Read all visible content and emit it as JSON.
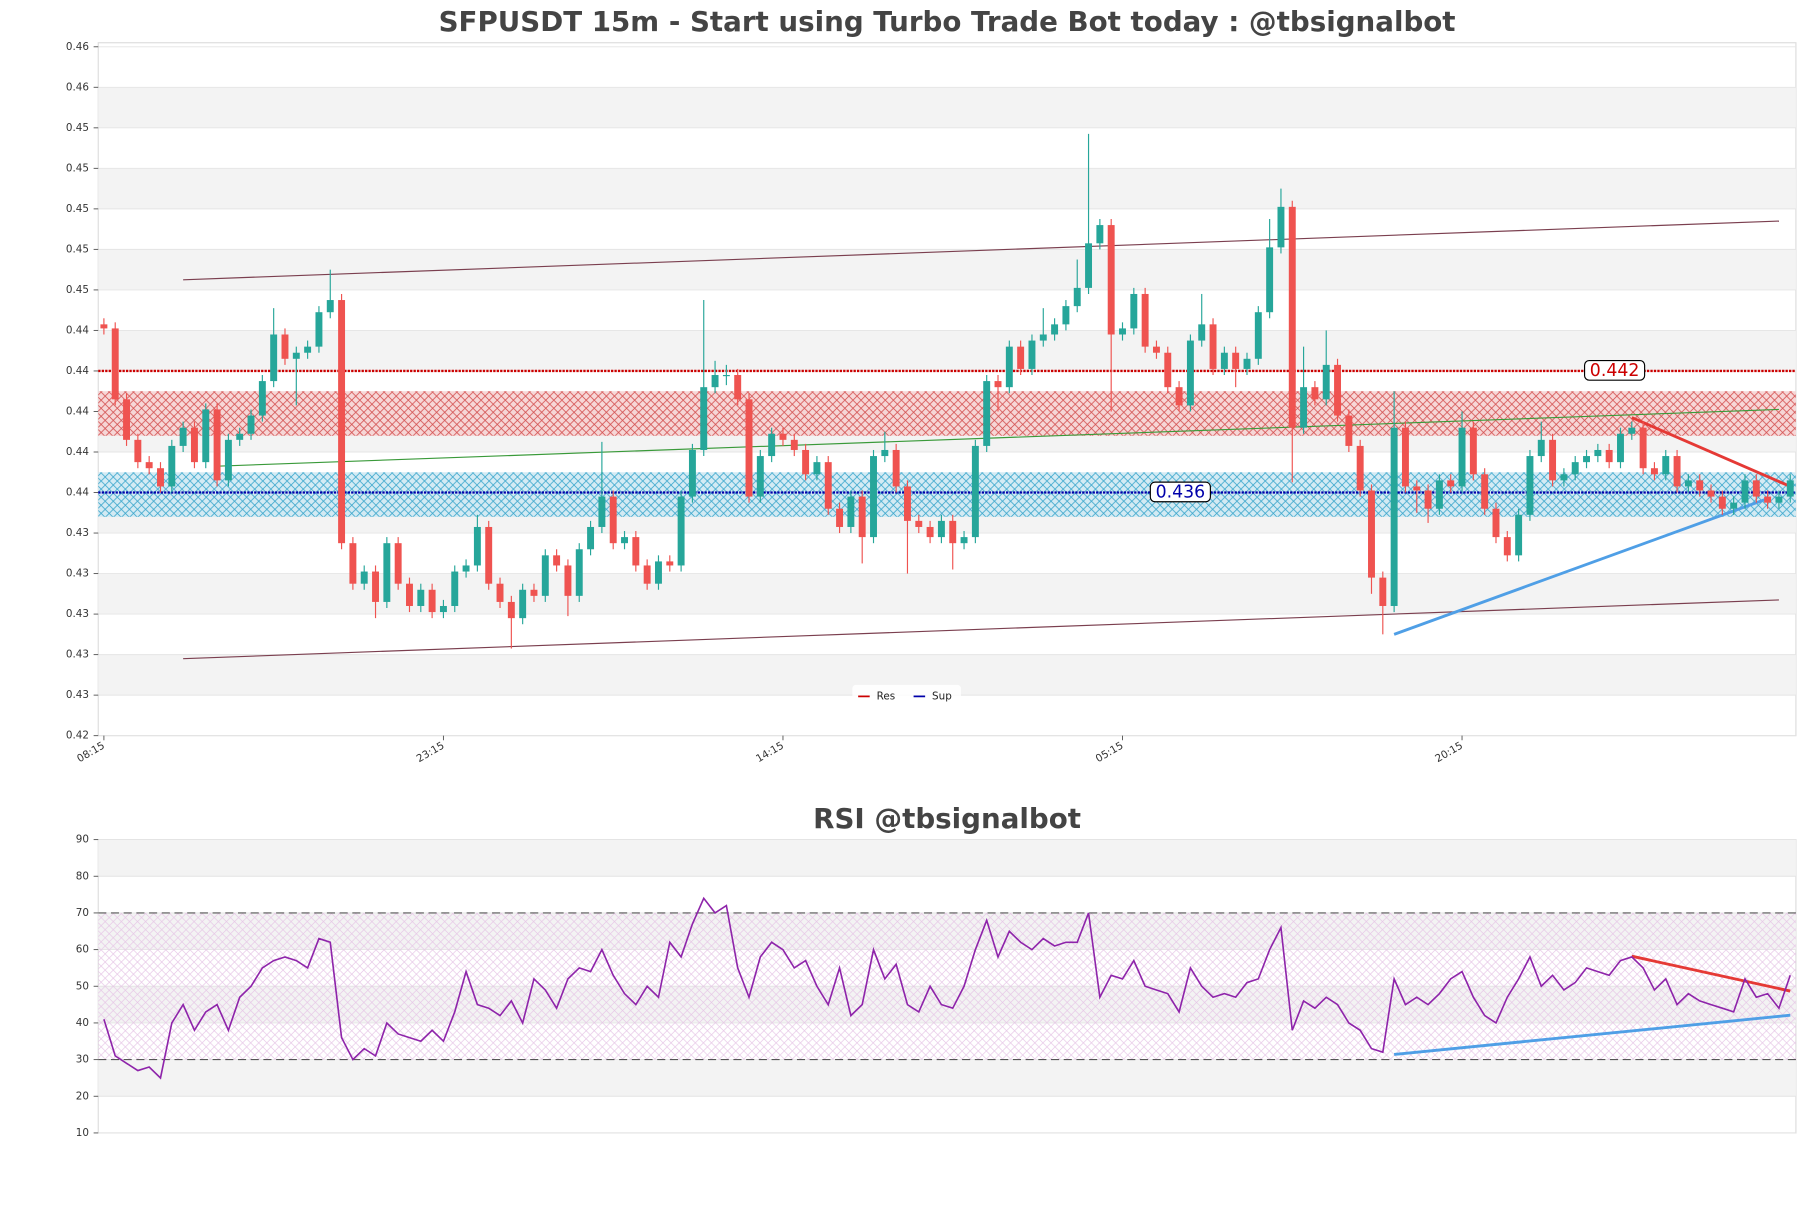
{
  "chart_data": [
    {
      "type": "candlestick",
      "title": "SFPUSDT 15m - Start using Turbo Trade Bot today : @tbsignalbot",
      "categories": [
        "08:15",
        null,
        null,
        null,
        null,
        null,
        null,
        null,
        null,
        null,
        null,
        null,
        null,
        null,
        null,
        null,
        null,
        null,
        null,
        null,
        null,
        null,
        null,
        null,
        null,
        null,
        null,
        null,
        null,
        null,
        "23:15",
        null,
        null,
        null,
        null,
        null,
        null,
        null,
        null,
        null,
        null,
        null,
        null,
        null,
        null,
        null,
        null,
        null,
        null,
        null,
        null,
        null,
        null,
        null,
        null,
        null,
        null,
        null,
        null,
        null,
        "14:15",
        null,
        null,
        null,
        null,
        null,
        null,
        null,
        null,
        null,
        null,
        null,
        null,
        null,
        null,
        null,
        null,
        null,
        null,
        null,
        null,
        null,
        null,
        null,
        null,
        null,
        null,
        null,
        null,
        null,
        "05:15",
        null,
        null,
        null,
        null,
        null,
        null,
        null,
        null,
        null,
        null,
        null,
        null,
        null,
        null,
        null,
        null,
        null,
        null,
        null,
        null,
        null,
        null,
        null,
        null,
        null,
        null,
        null,
        null,
        null,
        "20:15",
        null,
        null,
        null,
        null,
        null,
        null,
        null,
        null,
        null,
        null,
        null,
        null,
        null,
        null,
        null,
        null,
        null,
        null,
        null,
        null,
        null,
        null,
        null,
        null,
        null,
        null,
        null,
        null,
        null
      ],
      "open": [
        0.4443,
        0.4441,
        0.4406,
        0.4386,
        0.4375,
        0.4372,
        0.4363,
        0.4383,
        0.4392,
        0.4375,
        0.4401,
        0.4366,
        0.4386,
        0.4389,
        0.4398,
        0.4415,
        0.4438,
        0.4426,
        0.4429,
        0.4432,
        0.4449,
        0.4455,
        0.4335,
        0.4315,
        0.4321,
        0.4306,
        0.4335,
        0.4315,
        0.4304,
        0.4312,
        0.4301,
        0.4304,
        0.4321,
        0.4324,
        0.4343,
        0.4315,
        0.4306,
        0.4298,
        0.4312,
        0.4309,
        0.4329,
        0.4324,
        0.4309,
        0.4332,
        0.4343,
        0.4358,
        0.4335,
        0.4338,
        0.4324,
        0.4315,
        0.4326,
        0.4324,
        0.4358,
        0.4381,
        0.4412,
        0.4418,
        0.4418,
        0.4406,
        0.4358,
        0.4378,
        0.4389,
        0.4386,
        0.4381,
        0.4369,
        0.4375,
        0.4352,
        0.4343,
        0.4358,
        0.4338,
        0.4378,
        0.4381,
        0.4363,
        0.4346,
        0.4343,
        0.4338,
        0.4346,
        0.4335,
        0.4338,
        0.4383,
        0.4415,
        0.4412,
        0.4432,
        0.4421,
        0.4435,
        0.4438,
        0.4443,
        0.4452,
        0.4461,
        0.4483,
        0.4492,
        0.4438,
        0.4441,
        0.4458,
        0.4432,
        0.4429,
        0.4412,
        0.4403,
        0.4435,
        0.4443,
        0.4421,
        0.4429,
        0.4421,
        0.4426,
        0.4449,
        0.4481,
        0.4501,
        0.4392,
        0.4412,
        0.4406,
        0.4423,
        0.4398,
        0.4383,
        0.4361,
        0.4318,
        0.4304,
        0.4392,
        0.4363,
        0.4361,
        0.4352,
        0.4366,
        0.4363,
        0.4392,
        0.4369,
        0.4352,
        0.4338,
        0.4329,
        0.4349,
        0.4378,
        0.4386,
        0.4366,
        0.4369,
        0.4375,
        0.4378,
        0.4381,
        0.4375,
        0.4389,
        0.4392,
        0.4372,
        0.4369,
        0.4378,
        0.4363,
        0.4366,
        0.4361,
        0.4358,
        0.4352,
        0.4355,
        0.4366,
        0.4358,
        0.4355,
        0.4358
      ],
      "high": [
        0.4446,
        0.4444,
        0.4409,
        0.4389,
        0.4378,
        0.4375,
        0.4386,
        0.4395,
        0.4395,
        0.4404,
        0.4404,
        0.4389,
        0.4392,
        0.4401,
        0.4418,
        0.4451,
        0.4441,
        0.4432,
        0.4435,
        0.4452,
        0.447,
        0.4458,
        0.4338,
        0.4324,
        0.4324,
        0.4338,
        0.4338,
        0.4318,
        0.4315,
        0.4315,
        0.4307,
        0.4324,
        0.4327,
        0.4349,
        0.4346,
        0.4318,
        0.4309,
        0.4315,
        0.4315,
        0.4332,
        0.4332,
        0.4327,
        0.4335,
        0.4346,
        0.4385,
        0.4361,
        0.4341,
        0.4341,
        0.4327,
        0.4329,
        0.4329,
        0.4361,
        0.4384,
        0.4455,
        0.4425,
        0.4423,
        0.4421,
        0.4409,
        0.4381,
        0.4392,
        0.4392,
        0.4389,
        0.4384,
        0.4378,
        0.4378,
        0.4355,
        0.4361,
        0.4361,
        0.4381,
        0.439,
        0.4384,
        0.4366,
        0.4349,
        0.4346,
        0.4349,
        0.4349,
        0.4341,
        0.4386,
        0.4418,
        0.4418,
        0.4435,
        0.4435,
        0.4438,
        0.4451,
        0.4446,
        0.4455,
        0.4475,
        0.4537,
        0.4495,
        0.4495,
        0.4444,
        0.4461,
        0.4461,
        0.4435,
        0.4432,
        0.4415,
        0.4438,
        0.4458,
        0.4446,
        0.4432,
        0.4432,
        0.4429,
        0.4452,
        0.4495,
        0.451,
        0.4504,
        0.4432,
        0.4415,
        0.444,
        0.4426,
        0.4401,
        0.4386,
        0.4364,
        0.4321,
        0.441,
        0.4395,
        0.4366,
        0.4364,
        0.4369,
        0.4369,
        0.44,
        0.4395,
        0.4372,
        0.4355,
        0.4341,
        0.4352,
        0.4381,
        0.4395,
        0.4389,
        0.4372,
        0.4378,
        0.4381,
        0.4384,
        0.4384,
        0.4392,
        0.4395,
        0.4395,
        0.4375,
        0.4381,
        0.4381,
        0.4369,
        0.4369,
        0.4364,
        0.4361,
        0.4358,
        0.4369,
        0.4369,
        0.4361,
        0.4361,
        0.4369
      ],
      "low": [
        0.4438,
        0.4403,
        0.4383,
        0.4372,
        0.4369,
        0.436,
        0.436,
        0.438,
        0.4372,
        0.4372,
        0.4363,
        0.4363,
        0.4383,
        0.4386,
        0.4395,
        0.4412,
        0.4423,
        0.4403,
        0.4426,
        0.4429,
        0.4446,
        0.4332,
        0.4312,
        0.4312,
        0.4298,
        0.4303,
        0.4312,
        0.4301,
        0.4301,
        0.4298,
        0.4298,
        0.4301,
        0.4318,
        0.4321,
        0.4312,
        0.4303,
        0.4283,
        0.4295,
        0.4306,
        0.4306,
        0.4321,
        0.4299,
        0.4306,
        0.4329,
        0.434,
        0.4332,
        0.4332,
        0.4321,
        0.4312,
        0.4312,
        0.4321,
        0.4321,
        0.4355,
        0.4378,
        0.4409,
        0.4413,
        0.4403,
        0.4355,
        0.4355,
        0.4375,
        0.4383,
        0.4378,
        0.4366,
        0.4366,
        0.4349,
        0.434,
        0.434,
        0.4325,
        0.4335,
        0.4375,
        0.436,
        0.432,
        0.434,
        0.4335,
        0.4335,
        0.4322,
        0.4332,
        0.4335,
        0.438,
        0.44,
        0.4409,
        0.4418,
        0.4418,
        0.4432,
        0.4435,
        0.444,
        0.4449,
        0.4458,
        0.448,
        0.44,
        0.4435,
        0.4438,
        0.4429,
        0.4426,
        0.4409,
        0.44,
        0.44,
        0.4432,
        0.4418,
        0.4418,
        0.4412,
        0.4418,
        0.4423,
        0.4446,
        0.4478,
        0.4365,
        0.4389,
        0.4403,
        0.4403,
        0.4395,
        0.438,
        0.4358,
        0.431,
        0.429,
        0.4301,
        0.436,
        0.435,
        0.4345,
        0.4349,
        0.436,
        0.436,
        0.4366,
        0.4349,
        0.4335,
        0.4326,
        0.4326,
        0.4346,
        0.4375,
        0.4363,
        0.4363,
        0.4366,
        0.4372,
        0.4375,
        0.4372,
        0.4372,
        0.4386,
        0.4369,
        0.4366,
        0.4366,
        0.436,
        0.436,
        0.4358,
        0.4355,
        0.4349,
        0.4349,
        0.4352,
        0.4355,
        0.4352,
        0.4352,
        0.4355
      ],
      "close": [
        0.4441,
        0.4406,
        0.4386,
        0.4375,
        0.4372,
        0.4363,
        0.4383,
        0.4392,
        0.4375,
        0.4401,
        0.4366,
        0.4386,
        0.4389,
        0.4398,
        0.4415,
        0.4438,
        0.4426,
        0.4429,
        0.4432,
        0.4449,
        0.4455,
        0.4335,
        0.4315,
        0.4321,
        0.4306,
        0.4335,
        0.4315,
        0.4304,
        0.4312,
        0.4301,
        0.4304,
        0.4321,
        0.4324,
        0.4343,
        0.4315,
        0.4306,
        0.4298,
        0.4312,
        0.4309,
        0.4329,
        0.4324,
        0.4309,
        0.4332,
        0.4343,
        0.4358,
        0.4335,
        0.4338,
        0.4324,
        0.4315,
        0.4326,
        0.4324,
        0.4358,
        0.4381,
        0.4412,
        0.4418,
        0.4418,
        0.4406,
        0.4358,
        0.4378,
        0.4389,
        0.4386,
        0.4381,
        0.4369,
        0.4375,
        0.4352,
        0.4343,
        0.4358,
        0.4338,
        0.4378,
        0.4381,
        0.4363,
        0.4346,
        0.4343,
        0.4338,
        0.4346,
        0.4335,
        0.4338,
        0.4383,
        0.4415,
        0.4412,
        0.4432,
        0.4421,
        0.4435,
        0.4438,
        0.4443,
        0.4452,
        0.4461,
        0.4483,
        0.4492,
        0.4438,
        0.4441,
        0.4458,
        0.4432,
        0.4429,
        0.4412,
        0.4403,
        0.4435,
        0.4443,
        0.4421,
        0.4429,
        0.4421,
        0.4426,
        0.4449,
        0.4481,
        0.4501,
        0.4392,
        0.4412,
        0.4406,
        0.4423,
        0.4398,
        0.4383,
        0.4361,
        0.4318,
        0.4304,
        0.4392,
        0.4363,
        0.4361,
        0.4352,
        0.4366,
        0.4363,
        0.4392,
        0.4369,
        0.4352,
        0.4338,
        0.4329,
        0.4349,
        0.4378,
        0.4386,
        0.4366,
        0.4369,
        0.4375,
        0.4378,
        0.4381,
        0.4375,
        0.4389,
        0.4392,
        0.4372,
        0.4369,
        0.4378,
        0.4363,
        0.4366,
        0.4361,
        0.4358,
        0.4352,
        0.4355,
        0.4366,
        0.4358,
        0.4355,
        0.4358,
        0.4366
      ],
      "up_color": "#26a69a",
      "down_color": "#ef5350",
      "ylim": [
        0.424,
        0.4582
      ],
      "yticks": [
        {
          "value": 0.424,
          "label": "0.42"
        },
        {
          "value": 0.426,
          "label": "0.43"
        },
        {
          "value": 0.428,
          "label": "0.43"
        },
        {
          "value": 0.43,
          "label": "0.43"
        },
        {
          "value": 0.432,
          "label": "0.43"
        },
        {
          "value": 0.434,
          "label": "0.43"
        },
        {
          "value": 0.436,
          "label": "0.44"
        },
        {
          "value": 0.438,
          "label": "0.44"
        },
        {
          "value": 0.44,
          "label": "0.44"
        },
        {
          "value": 0.442,
          "label": "0.44"
        },
        {
          "value": 0.444,
          "label": "0.44"
        },
        {
          "value": 0.446,
          "label": "0.45"
        },
        {
          "value": 0.448,
          "label": "0.45"
        },
        {
          "value": 0.45,
          "label": "0.45"
        },
        {
          "value": 0.452,
          "label": "0.45"
        },
        {
          "value": 0.454,
          "label": "0.45"
        },
        {
          "value": 0.456,
          "label": "0.46"
        },
        {
          "value": 0.458,
          "label": "0.46"
        }
      ],
      "grid": true,
      "resistance": {
        "name": "Res",
        "value": 0.442,
        "zone": [
          0.4388,
          0.441
        ],
        "color": "#cc0000"
      },
      "support": {
        "name": "Sup",
        "value": 0.436,
        "zone": [
          0.4348,
          0.437
        ],
        "color": "#0000aa"
      },
      "lines": [
        {
          "x": [
            7,
            148
          ],
          "y": [
            0.4465,
            0.4494
          ],
          "color": "#7b3f4f"
        },
        {
          "x": [
            7,
            148
          ],
          "y": [
            0.4278,
            0.4307
          ],
          "color": "#7b3f4f"
        },
        {
          "x": [
            10,
            148
          ],
          "y": [
            0.4373,
            0.4401
          ],
          "color": "#3a9a3a"
        },
        {
          "x": [
            135,
            149
          ],
          "y": [
            0.4397,
            0.4363
          ],
          "color": "#e53935"
        },
        {
          "x": [
            114,
            147
          ],
          "y": [
            0.429,
            0.4357
          ],
          "color": "#4f9fe6"
        }
      ]
    },
    {
      "type": "line",
      "title": "RSI @tbsignalbot",
      "values": [
        41,
        31,
        29,
        27,
        28,
        25,
        40,
        45,
        38,
        43,
        45,
        38,
        47,
        50,
        55,
        57,
        58,
        57,
        55,
        63,
        62,
        36,
        30,
        33,
        31,
        40,
        37,
        36,
        35,
        38,
        35,
        43,
        54,
        45,
        44,
        42,
        46,
        40,
        52,
        49,
        44,
        52,
        55,
        54,
        60,
        53,
        48,
        45,
        50,
        47,
        62,
        58,
        67,
        74,
        70,
        72,
        55,
        47,
        58,
        62,
        60,
        55,
        57,
        50,
        45,
        55,
        42,
        45,
        60,
        52,
        56,
        45,
        43,
        50,
        45,
        44,
        50,
        60,
        68,
        58,
        65,
        62,
        60,
        63,
        61,
        62,
        62,
        70,
        47,
        53,
        52,
        57,
        50,
        49,
        48,
        43,
        55,
        50,
        47,
        48,
        47,
        51,
        52,
        60,
        66,
        38,
        46,
        44,
        47,
        45,
        40,
        38,
        33,
        32,
        52,
        45,
        47,
        45,
        48,
        52,
        54,
        47,
        42,
        40,
        47,
        52,
        58,
        50,
        53,
        49,
        51,
        55,
        54,
        53,
        57,
        58,
        55,
        49,
        52,
        45,
        48,
        46,
        45,
        44,
        43,
        52,
        47,
        48,
        44,
        53
      ],
      "color": "#8e24aa",
      "ylim": [
        10,
        90
      ],
      "yticks": [
        10,
        20,
        30,
        40,
        50,
        60,
        70,
        80,
        90
      ],
      "grid": true,
      "levels": [
        70,
        30
      ],
      "lines": [
        {
          "x": [
            135,
            149
          ],
          "y": [
            58.2,
            48.7
          ],
          "color": "#e53935"
        },
        {
          "x": [
            114,
            149
          ],
          "y": [
            31.4,
            42.1
          ],
          "color": "#4f9fe6"
        }
      ]
    }
  ]
}
